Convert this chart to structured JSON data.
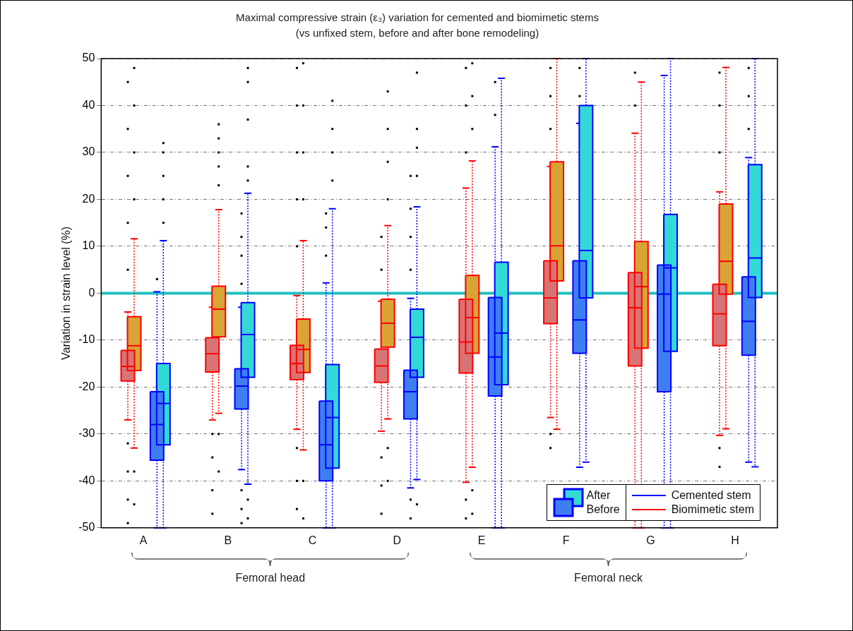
{
  "chart_data": {
    "type": "box",
    "title": "Maximal compressive strain (ε₃) variation for cemented and biomimetic stems",
    "subtitle": "(vs unfixed stem, before and after bone remodeling)",
    "ylabel": "Variation in strain level (%)",
    "categories": [
      "A",
      "B",
      "C",
      "D",
      "E",
      "F",
      "G",
      "H"
    ],
    "ylim": [
      -50,
      50
    ],
    "yticks": [
      -50,
      -40,
      -30,
      -20,
      -10,
      0,
      10,
      20,
      30,
      40,
      50
    ],
    "grid": "y",
    "ref_lines": [
      {
        "axis": "y",
        "value": 0,
        "color": "#20c0c0"
      }
    ],
    "annotations": [
      "Femoral head",
      "Femoral neck",
      "After",
      "Before",
      "Cemented stem",
      "Biomimetic stem"
    ],
    "series": [
      {
        "color": "#d97474",
        "boxes": [
          {
            "low": -27,
            "q1": -18.7,
            "median": -15.6,
            "q3": -12.2,
            "high": -4,
            "outliers": [
              5,
              15,
              25,
              35,
              45,
              -32,
              -38,
              -44,
              -49
            ]
          },
          {
            "low": -27,
            "q1": -16.8,
            "median": -12.9,
            "q3": -9.5,
            "high": -3,
            "outliers": [
              -30,
              -35,
              -42,
              -47
            ]
          },
          {
            "low": -29,
            "q1": -18.4,
            "median": -15,
            "q3": -11.1,
            "high": -0.5,
            "outliers": [
              10,
              20,
              30,
              40,
              48,
              -33,
              -40,
              -46
            ]
          },
          {
            "low": -29.4,
            "q1": -19,
            "median": -15.5,
            "q3": -11.9,
            "high": -1.7,
            "outliers": [
              5,
              12,
              -35,
              -41,
              -47
            ]
          },
          {
            "low": -40.3,
            "q1": -17,
            "median": -10.4,
            "q3": -1.3,
            "high": 22.4,
            "outliers": [
              30,
              40,
              48,
              -44,
              -48
            ]
          },
          {
            "low": -26.5,
            "q1": -6.5,
            "median": -1,
            "q3": 6.9,
            "high": 27,
            "outliers": [
              35,
              42,
              48,
              -30,
              -33
            ]
          },
          {
            "low": -50,
            "q1": -15.5,
            "median": -3.1,
            "q3": 4.4,
            "high": 34.1,
            "outliers": [
              40,
              47
            ]
          },
          {
            "low": -30.3,
            "q1": -11.2,
            "median": -4.4,
            "q3": 1.9,
            "high": 21.6,
            "outliers": [
              30,
              40,
              47,
              -33,
              -37
            ]
          }
        ]
      },
      {
        "color": "#d9a436",
        "boxes": [
          {
            "low": -33,
            "q1": -16.5,
            "median": -11.2,
            "q3": -5,
            "high": 11.6,
            "outliers": [
              20,
              30,
              40,
              48,
              -38,
              -45
            ]
          },
          {
            "low": -25.6,
            "q1": -9.3,
            "median": -3.4,
            "q3": 1.5,
            "high": 17.8,
            "outliers": [
              23,
              27,
              30,
              33,
              36,
              -30,
              -38
            ]
          },
          {
            "low": -33.4,
            "q1": -16.9,
            "median": -12,
            "q3": -5.5,
            "high": 11.2,
            "outliers": [
              20,
              30,
              40,
              49,
              -40,
              -48
            ]
          },
          {
            "low": -26.8,
            "q1": -11.5,
            "median": -6.4,
            "q3": -1.3,
            "high": 14.4,
            "outliers": [
              20,
              28,
              35,
              43,
              -33,
              -40
            ]
          },
          {
            "low": -37.1,
            "q1": -12.8,
            "median": -5.2,
            "q3": 3.8,
            "high": 28.2,
            "outliers": [
              35,
              42,
              49,
              -42,
              -47
            ]
          },
          {
            "low": -29,
            "q1": 2.6,
            "median": 10.1,
            "q3": 28,
            "high": 50
          },
          {
            "low": -50,
            "q1": -11.7,
            "median": 1.4,
            "q3": 11,
            "high": 45
          },
          {
            "low": -28.9,
            "q1": -0.2,
            "median": 6.8,
            "q3": 19,
            "high": 48.1
          }
        ]
      },
      {
        "color": "#3f7ef2",
        "boxes": [
          {
            "low": -50,
            "q1": -35.6,
            "median": -28,
            "q3": -21,
            "high": 0.3,
            "outliers": [
              3
            ]
          },
          {
            "low": -37.6,
            "q1": -24.7,
            "median": -19.8,
            "q3": -16.1,
            "high": -3,
            "outliers": [
              2,
              8,
              12,
              17,
              -42,
              -46,
              -49
            ]
          },
          {
            "low": -50,
            "q1": -40,
            "median": -32.3,
            "q3": -23,
            "high": 2.2,
            "outliers": [
              8,
              14,
              17
            ]
          },
          {
            "low": -41.5,
            "q1": -26.8,
            "median": -21,
            "q3": -16.4,
            "high": -1.1,
            "outliers": [
              5,
              12,
              18,
              25,
              -44,
              -48
            ]
          },
          {
            "low": -50,
            "q1": -21.9,
            "median": -13.6,
            "q3": -0.9,
            "high": 31.2,
            "outliers": [
              38,
              45
            ]
          },
          {
            "low": -37.1,
            "q1": -12.8,
            "median": -5.7,
            "q3": 6.9,
            "high": 36.2,
            "outliers": [
              42,
              48
            ]
          },
          {
            "low": -50,
            "q1": -21,
            "median": -0.2,
            "q3": 6,
            "high": 46.4
          },
          {
            "low": -36,
            "q1": -13.2,
            "median": -6,
            "q3": 3.5,
            "high": 28.9,
            "outliers": [
              35,
              42,
              48
            ]
          }
        ]
      },
      {
        "color": "#33d9d6",
        "boxes": [
          {
            "low": -50,
            "q1": -32.3,
            "median": -23.5,
            "q3": -15,
            "high": 11.2,
            "outliers": [
              15,
              20,
              25,
              30,
              32
            ]
          },
          {
            "low": -40.7,
            "q1": -17.9,
            "median": -8.8,
            "q3": -2,
            "high": 21.3,
            "outliers": [
              24,
              27,
              37,
              45,
              48,
              -44,
              -48
            ]
          },
          {
            "low": -50,
            "q1": -37.3,
            "median": -26.5,
            "q3": -15.2,
            "high": 18,
            "outliers": [
              24,
              30,
              35,
              41
            ]
          },
          {
            "low": -39.7,
            "q1": -17.9,
            "median": -9.4,
            "q3": -3.4,
            "high": 18.4,
            "outliers": [
              25,
              31,
              35,
              47,
              -45
            ]
          },
          {
            "low": -50,
            "q1": -19.5,
            "median": -8.5,
            "q3": 6.6,
            "high": 45.8
          },
          {
            "low": -36,
            "q1": -1,
            "median": 9.1,
            "q3": 40,
            "high": 50
          },
          {
            "low": -50,
            "q1": -12.4,
            "median": 5.4,
            "q3": 16.8,
            "high": 50
          },
          {
            "low": -37,
            "q1": -0.9,
            "median": 7.5,
            "q3": 27.4,
            "high": 50
          }
        ]
      }
    ]
  }
}
